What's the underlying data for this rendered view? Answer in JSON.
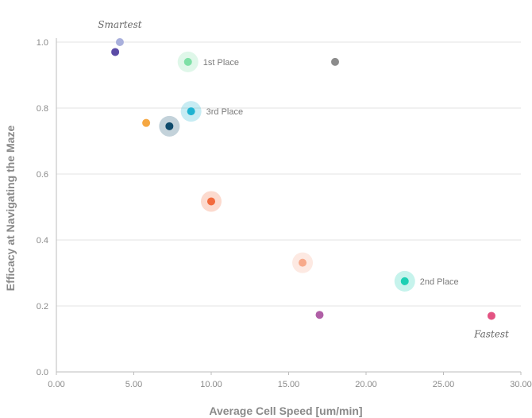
{
  "chart_data": {
    "type": "scatter",
    "xlabel": "Average Cell Speed [um/min]",
    "ylabel": "Efficacy at Navigating the Maze",
    "xlim": [
      0,
      30
    ],
    "ylim": [
      0,
      1
    ],
    "x_ticks": [
      "0.00",
      "5.00",
      "10.00",
      "15.00",
      "20.00",
      "25.00",
      "30.00"
    ],
    "y_ticks": [
      "0.0",
      "0.2",
      "0.4",
      "0.6",
      "0.8",
      "1.0"
    ],
    "grid": "horizontal",
    "points": [
      {
        "x": 4.1,
        "y": 1.0,
        "color": "#a9b0dc",
        "halo": false,
        "label": ""
      },
      {
        "x": 3.8,
        "y": 0.97,
        "color": "#5b4ba6",
        "halo": false,
        "label": ""
      },
      {
        "x": 8.5,
        "y": 0.94,
        "color": "#7ee0a6",
        "halo": true,
        "label": "1st Place"
      },
      {
        "x": 18.0,
        "y": 0.94,
        "color": "#8c8c8c",
        "halo": false,
        "label": ""
      },
      {
        "x": 8.7,
        "y": 0.79,
        "color": "#1fb3d1",
        "halo": true,
        "label": "3rd Place"
      },
      {
        "x": 5.8,
        "y": 0.755,
        "color": "#f5a742",
        "halo": false,
        "label": ""
      },
      {
        "x": 7.3,
        "y": 0.745,
        "color": "#0e4a6b",
        "halo": true,
        "label": ""
      },
      {
        "x": 10.0,
        "y": 0.517,
        "color": "#f26a3d",
        "halo": true,
        "label": ""
      },
      {
        "x": 15.9,
        "y": 0.331,
        "color": "#f7a98a",
        "halo": true,
        "label": ""
      },
      {
        "x": 22.5,
        "y": 0.275,
        "color": "#1ccfb3",
        "halo": true,
        "label": "2nd Place"
      },
      {
        "x": 17.0,
        "y": 0.173,
        "color": "#b05fa6",
        "halo": false,
        "label": ""
      },
      {
        "x": 28.1,
        "y": 0.17,
        "color": "#e35382",
        "halo": false,
        "label": ""
      }
    ],
    "annotations": [
      {
        "text": "Smartest",
        "x": 4.1,
        "y": 1.0,
        "position": "above"
      },
      {
        "text": "Fastest",
        "x": 28.1,
        "y": 0.17,
        "position": "below"
      }
    ]
  }
}
